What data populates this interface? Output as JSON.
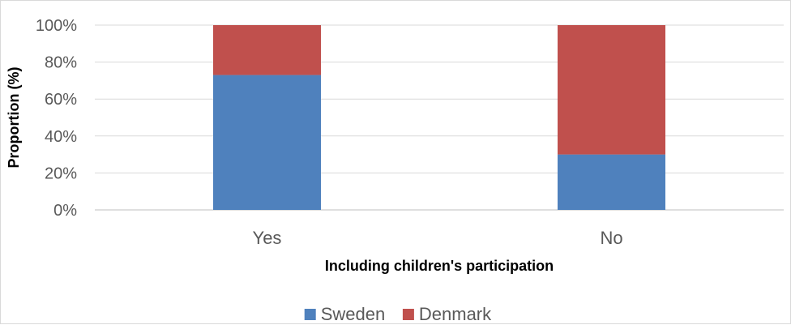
{
  "chart_data": {
    "type": "bar",
    "stacked": true,
    "categories": [
      "Yes",
      "No"
    ],
    "series": [
      {
        "name": "Sweden",
        "values": [
          73,
          30
        ],
        "color": "#4F81BD"
      },
      {
        "name": "Denmark",
        "values": [
          27,
          70
        ],
        "color": "#C0504D"
      }
    ],
    "xlabel": "Including children's participation",
    "ylabel": "Proportion (%)",
    "ylim": [
      0,
      100
    ],
    "yticks": [
      "0%",
      "20%",
      "40%",
      "60%",
      "80%",
      "100%"
    ],
    "grid": true,
    "legend_position": "bottom"
  }
}
